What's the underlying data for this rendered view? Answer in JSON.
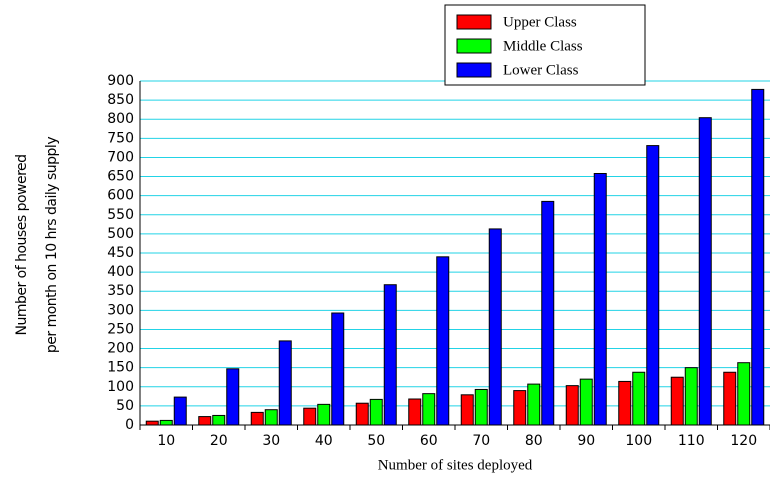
{
  "chart_data": {
    "type": "bar",
    "x_label": "Number of sites deployed",
    "y_label": [
      "Number of houses powered",
      "per month on 10 hrs daily supply"
    ],
    "categories": [
      "10",
      "20",
      "30",
      "40",
      "50",
      "60",
      "70",
      "80",
      "90",
      "100",
      "110",
      "120"
    ],
    "series": [
      {
        "name": "Upper Class",
        "color": "#ff0000",
        "values": [
          10,
          22,
          33,
          44,
          57,
          68,
          79,
          90,
          103,
          114,
          125,
          138
        ]
      },
      {
        "name": "Middle Class",
        "color": "#00ff00",
        "values": [
          12,
          25,
          40,
          54,
          67,
          82,
          93,
          107,
          120,
          138,
          150,
          163
        ]
      },
      {
        "name": "Lower Class",
        "color": "#0000ff",
        "values": [
          73,
          147,
          220,
          293,
          367,
          440,
          513,
          585,
          658,
          731,
          804,
          878
        ]
      }
    ],
    "ylim": [
      0,
      900
    ],
    "yticks": [
      0,
      50,
      100,
      150,
      200,
      250,
      300,
      350,
      400,
      450,
      500,
      550,
      600,
      650,
      700,
      750,
      800,
      850,
      900
    ],
    "grid": true,
    "legend": "top"
  }
}
